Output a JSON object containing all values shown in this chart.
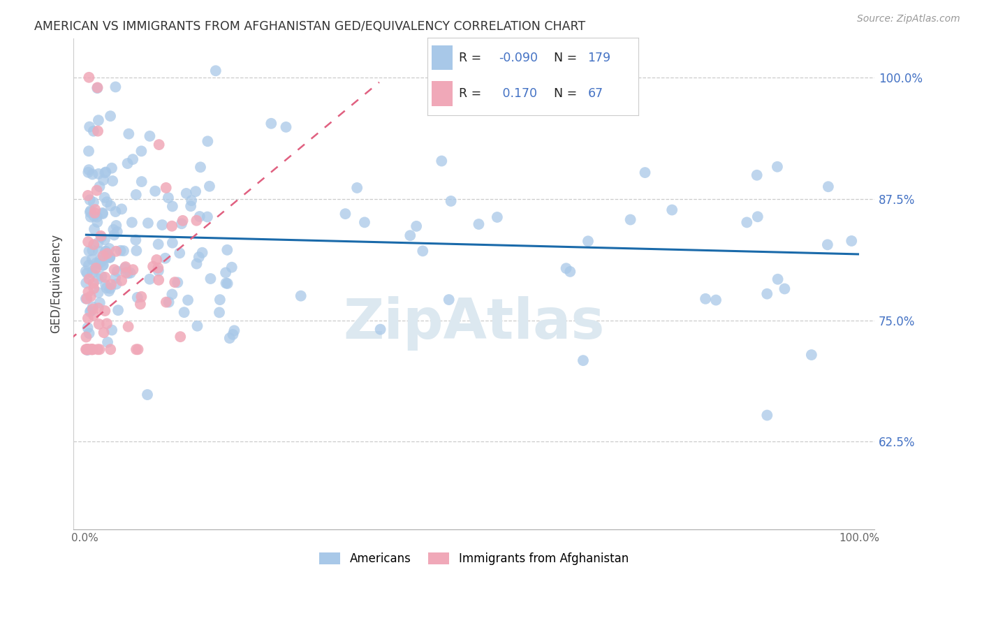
{
  "title": "AMERICAN VS IMMIGRANTS FROM AFGHANISTAN GED/EQUIVALENCY CORRELATION CHART",
  "source": "Source: ZipAtlas.com",
  "ylabel": "GED/Equivalency",
  "right_yticklabels": [
    "62.5%",
    "75.0%",
    "87.5%",
    "100.0%"
  ],
  "right_yticks": [
    0.625,
    0.75,
    0.875,
    1.0
  ],
  "r_american": -0.09,
  "n_american": 179,
  "r_afghan": 0.17,
  "n_afghan": 67,
  "american_color": "#a8c8e8",
  "afghan_color": "#f0a8b8",
  "trend_american_color": "#1a6aaa",
  "trend_afghan_color": "#e06080",
  "legend_text_color": "#4472c4",
  "background_color": "#ffffff",
  "watermark_color": "#dce8f0",
  "ylim_lo": 0.535,
  "ylim_hi": 1.04,
  "xlim_lo": -0.015,
  "xlim_hi": 1.02,
  "trend_blue_x0": 0.0,
  "trend_blue_x1": 1.0,
  "trend_blue_y0": 0.838,
  "trend_blue_y1": 0.818,
  "trend_pink_x0": -0.02,
  "trend_pink_x1": 0.38,
  "trend_pink_y0": 0.73,
  "trend_pink_y1": 0.995
}
